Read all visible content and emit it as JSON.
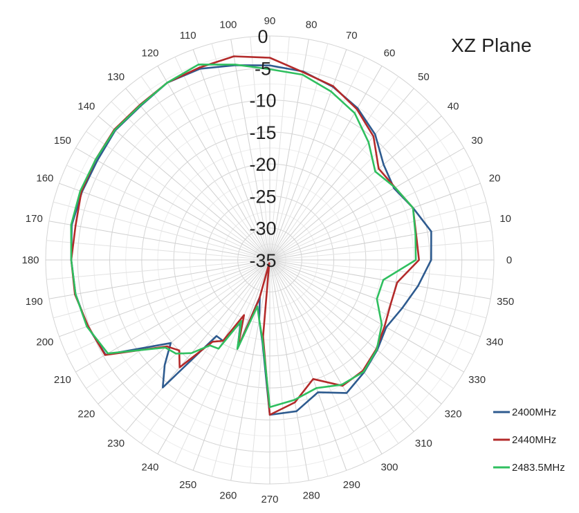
{
  "chart_data": {
    "type": "polar-line",
    "title": "XZ Plane",
    "radial_axis": {
      "range": [
        -35,
        0
      ],
      "ticks": [
        "0",
        "-5",
        "-10",
        "-15",
        "-20",
        "-25",
        "-30",
        "-35"
      ],
      "tick_values": [
        0,
        -5,
        -10,
        -15,
        -20,
        -25,
        -30,
        -35
      ]
    },
    "angular_axis": {
      "unit": "degrees",
      "direction": "counterclockwise",
      "zero_at": "right",
      "tick_labels": [
        "0",
        "10",
        "20",
        "30",
        "40",
        "50",
        "60",
        "70",
        "80",
        "90",
        "100",
        "110",
        "120",
        "130",
        "140",
        "150",
        "160",
        "170",
        "180",
        "190",
        "200",
        "210",
        "220",
        "230",
        "240",
        "250",
        "260",
        "270",
        "280",
        "290",
        "300",
        "310",
        "320",
        "330",
        "340",
        "350"
      ],
      "spoke_step_deg": 5
    },
    "grid": true,
    "legend_position": "bottom-right",
    "series": [
      {
        "name": "2400MHz",
        "color": "#2e5b8f",
        "angles": [
          0,
          10,
          20,
          30,
          40,
          50,
          60,
          70,
          80,
          90,
          100,
          110,
          120,
          130,
          140,
          150,
          160,
          170,
          180,
          190,
          200,
          210,
          220,
          225,
          230,
          235,
          240,
          245,
          250,
          255,
          260,
          265,
          270,
          280,
          290,
          300,
          310,
          320,
          330,
          340,
          350
        ],
        "values": [
          -9.8,
          -9.4,
          -11.2,
          -12.6,
          -11.8,
          -9.4,
          -7.6,
          -6.2,
          -5.1,
          -4.6,
          -4.1,
          -3.2,
          -3.0,
          -3.6,
          -3.5,
          -3.9,
          -3.8,
          -3.6,
          -4.0,
          -4.2,
          -4.7,
          -5.4,
          -14.8,
          -11.8,
          -9.0,
          -20.5,
          -20.4,
          -24.2,
          -20.3,
          -29.0,
          -25.5,
          -22.0,
          -10.8,
          -11.0,
          -13.0,
          -11.0,
          -12.1,
          -13.1,
          -14.0,
          -13.0,
          -11.5
        ]
      },
      {
        "name": "2440MHz",
        "color": "#b32a2a",
        "angles": [
          0,
          10,
          20,
          30,
          40,
          50,
          60,
          70,
          80,
          90,
          100,
          110,
          120,
          130,
          140,
          150,
          160,
          170,
          180,
          190,
          200,
          210,
          220,
          225,
          230,
          235,
          240,
          245,
          250,
          255,
          260,
          265,
          270,
          280,
          290,
          300,
          310,
          320,
          330,
          340,
          350
        ],
        "values": [
          -11.7,
          -11.8,
          -11.2,
          -12.4,
          -12.8,
          -9.8,
          -7.8,
          -6.1,
          -5.2,
          -3.4,
          -2.7,
          -3.0,
          -3.0,
          -3.4,
          -3.3,
          -3.6,
          -3.7,
          -4.2,
          -4.0,
          -4.1,
          -4.8,
          -5.3,
          -14.0,
          -15.0,
          -13.1,
          -19.4,
          -20.4,
          -25.5,
          -20.3,
          -28.8,
          -34.5,
          -23.0,
          -10.8,
          -12.4,
          -15.2,
          -12.3,
          -12.4,
          -13.3,
          -14.3,
          -14.9,
          -14.8
        ]
      },
      {
        "name": "2483.5MHz",
        "color": "#2fbf5f",
        "angles": [
          0,
          10,
          20,
          30,
          40,
          50,
          60,
          70,
          80,
          90,
          100,
          110,
          120,
          130,
          140,
          150,
          160,
          170,
          180,
          190,
          200,
          210,
          220,
          225,
          230,
          235,
          240,
          245,
          250,
          255,
          260,
          265,
          270,
          280,
          290,
          300,
          310,
          320,
          330,
          340,
          350
        ],
        "values": [
          -12.2,
          -11.9,
          -11.2,
          -12.4,
          -13.5,
          -11.0,
          -8.5,
          -7.0,
          -5.6,
          -5.2,
          -4.0,
          -2.5,
          -3.0,
          -3.5,
          -3.4,
          -3.6,
          -3.5,
          -3.5,
          -4.0,
          -4.2,
          -4.6,
          -5.8,
          -13.7,
          -14.3,
          -16.0,
          -18.7,
          -19.0,
          -24.5,
          -20.2,
          -27.5,
          -25.5,
          -22.3,
          -12.0,
          -12.8,
          -13.7,
          -12.5,
          -12.2,
          -13.2,
          -14.8,
          -17.2,
          -17.0
        ]
      }
    ]
  }
}
